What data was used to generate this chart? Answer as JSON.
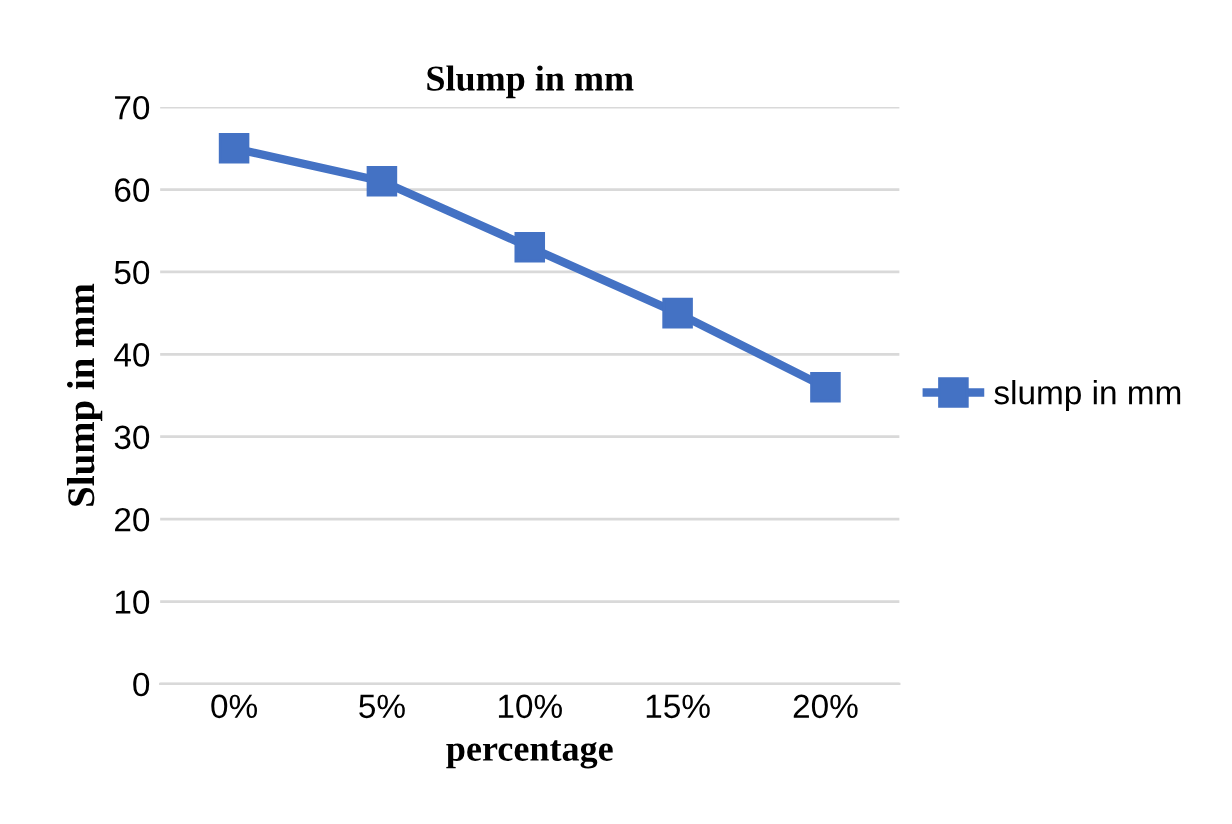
{
  "chart_data": {
    "type": "line",
    "title": "Slump in mm",
    "xlabel": "percentage",
    "ylabel": "Slump in mm",
    "categories": [
      "0%",
      "5%",
      "10%",
      "15%",
      "20%"
    ],
    "series": [
      {
        "name": "slump in mm",
        "color": "#4472c4",
        "values": [
          65,
          61,
          53,
          45,
          36
        ]
      }
    ],
    "ylim": [
      0,
      70
    ],
    "yticks": [
      0,
      10,
      20,
      30,
      40,
      50,
      60,
      70
    ],
    "grid": "y",
    "legend": "right",
    "marker": "square",
    "line_style": "solid"
  }
}
